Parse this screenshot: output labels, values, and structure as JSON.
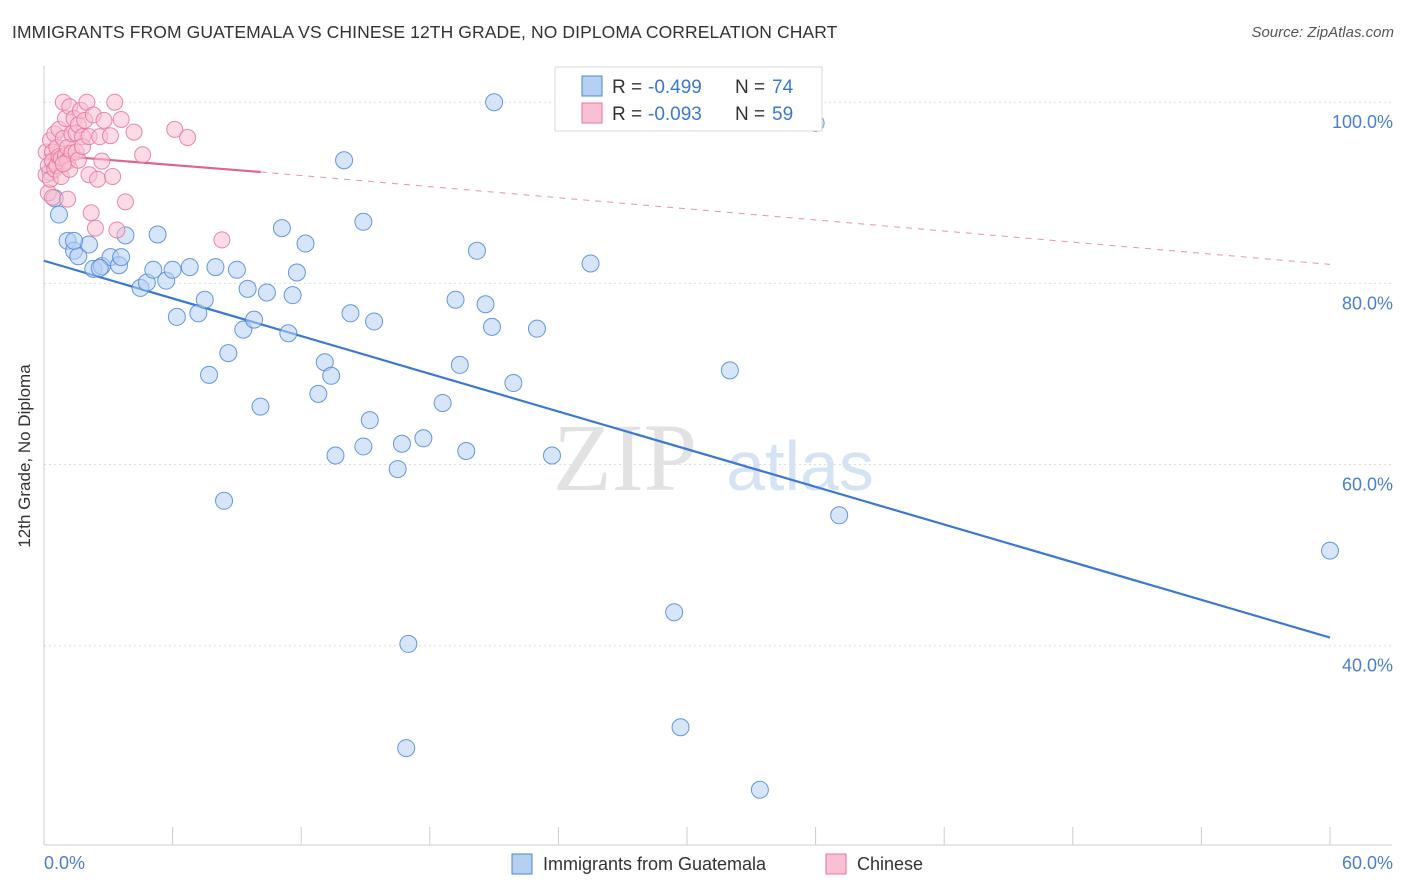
{
  "title": "IMMIGRANTS FROM GUATEMALA VS CHINESE 12TH GRADE, NO DIPLOMA CORRELATION CHART",
  "source": "Source: ZipAtlas.com",
  "watermark": {
    "zip": "ZIP",
    "atlas": "atlas"
  },
  "colors": {
    "blue": "#4a86d8",
    "blue_fill": "#b6d0f2",
    "blue_line": "#3b78d4",
    "pink": "#e8739a",
    "pink_fill": "#f8c0d2",
    "pink_line": "#e0628e",
    "axis_text": "#4a7ecf",
    "grid": "#dddddd"
  },
  "legend": {
    "rows": [
      {
        "r_label": "R =",
        "r_value": "-0.499",
        "n_label": "N =",
        "n_value": "74",
        "color": "blue"
      },
      {
        "r_label": "R =",
        "r_value": "-0.093",
        "n_label": "N =",
        "n_value": "59",
        "color": "pink"
      }
    ]
  },
  "bottom_legend": [
    {
      "label": "Immigrants from Guatemala",
      "color": "blue"
    },
    {
      "label": "Chinese",
      "color": "pink"
    }
  ],
  "chart_data": {
    "type": "scatter",
    "title": "IMMIGRANTS FROM GUATEMALA VS CHINESE 12TH GRADE, NO DIPLOMA CORRELATION CHART",
    "xlabel": "",
    "ylabel": "12th Grade, No Diploma",
    "xlim": [
      0,
      60
    ],
    "ylim": [
      18,
      104
    ],
    "x_tick_labels": [
      {
        "value": 0,
        "label": "0.0%"
      },
      {
        "value": 60,
        "label": "60.0%"
      }
    ],
    "x_minor_ticks": [
      0,
      6,
      12,
      18,
      24,
      30,
      36,
      42,
      48,
      54,
      60
    ],
    "y_ticks": [
      {
        "value": 100,
        "label": "100.0%"
      },
      {
        "value": 80,
        "label": "80.0%"
      },
      {
        "value": 60,
        "label": "60.0%"
      },
      {
        "value": 40,
        "label": "40.0%"
      }
    ],
    "series": [
      {
        "name": "Immigrants from Guatemala",
        "color": "blue",
        "points": [
          [
            0.3,
            92.3
          ],
          [
            0.5,
            89.4
          ],
          [
            0.7,
            87.6
          ],
          [
            1.1,
            84.7
          ],
          [
            1.4,
            83.6
          ],
          [
            1.6,
            83.0
          ],
          [
            2.1,
            84.3
          ],
          [
            2.3,
            81.6
          ],
          [
            2.7,
            81.9
          ],
          [
            3.1,
            82.9
          ],
          [
            3.5,
            82.0
          ],
          [
            3.6,
            82.9
          ],
          [
            3.8,
            85.3
          ],
          [
            4.5,
            79.5
          ],
          [
            4.8,
            80.1
          ],
          [
            5.1,
            81.5
          ],
          [
            5.3,
            85.4
          ],
          [
            5.7,
            80.3
          ],
          [
            6.0,
            81.5
          ],
          [
            6.2,
            76.3
          ],
          [
            6.8,
            81.8
          ],
          [
            7.2,
            76.7
          ],
          [
            7.5,
            78.2
          ],
          [
            7.7,
            69.9
          ],
          [
            8.0,
            81.8
          ],
          [
            8.4,
            56.0
          ],
          [
            8.6,
            72.3
          ],
          [
            9.0,
            81.5
          ],
          [
            9.3,
            74.9
          ],
          [
            9.5,
            79.4
          ],
          [
            9.8,
            76.0
          ],
          [
            10.1,
            66.4
          ],
          [
            10.4,
            79.0
          ],
          [
            11.1,
            86.1
          ],
          [
            11.4,
            74.5
          ],
          [
            11.6,
            78.7
          ],
          [
            11.8,
            81.2
          ],
          [
            12.2,
            84.4
          ],
          [
            12.8,
            67.8
          ],
          [
            13.1,
            71.3
          ],
          [
            13.4,
            69.8
          ],
          [
            13.6,
            61.0
          ],
          [
            14.0,
            93.6
          ],
          [
            14.3,
            76.7
          ],
          [
            14.9,
            62.0
          ],
          [
            14.9,
            86.8
          ],
          [
            15.2,
            64.9
          ],
          [
            15.4,
            75.8
          ],
          [
            16.5,
            59.5
          ],
          [
            16.7,
            62.3
          ],
          [
            16.9,
            28.7
          ],
          [
            17.0,
            40.2
          ],
          [
            17.7,
            62.9
          ],
          [
            18.6,
            66.8
          ],
          [
            19.2,
            78.2
          ],
          [
            19.4,
            71.0
          ],
          [
            19.7,
            61.5
          ],
          [
            20.2,
            83.6
          ],
          [
            20.6,
            77.7
          ],
          [
            20.9,
            75.2
          ],
          [
            21.0,
            100.0
          ],
          [
            21.9,
            69.0
          ],
          [
            23.0,
            75.0
          ],
          [
            23.7,
            61.0
          ],
          [
            25.5,
            82.2
          ],
          [
            29.4,
            43.7
          ],
          [
            29.7,
            31.0
          ],
          [
            32.0,
            70.4
          ],
          [
            33.4,
            24.1
          ],
          [
            36.0,
            97.7
          ],
          [
            37.1,
            54.4
          ],
          [
            60.0,
            50.5
          ],
          [
            1.4,
            84.7
          ],
          [
            2.6,
            81.7
          ]
        ]
      },
      {
        "name": "Chinese",
        "color": "pink",
        "points": [
          [
            0.1,
            92.0
          ],
          [
            0.1,
            94.5
          ],
          [
            0.2,
            90.0
          ],
          [
            0.2,
            93.0
          ],
          [
            0.3,
            95.8
          ],
          [
            0.3,
            91.5
          ],
          [
            0.4,
            94.5
          ],
          [
            0.4,
            93.5
          ],
          [
            0.4,
            89.5
          ],
          [
            0.5,
            96.5
          ],
          [
            0.5,
            92.6
          ],
          [
            0.6,
            95.0
          ],
          [
            0.6,
            93.0
          ],
          [
            0.7,
            94.0
          ],
          [
            0.7,
            97.0
          ],
          [
            0.8,
            91.8
          ],
          [
            0.8,
            93.8
          ],
          [
            0.9,
            100.0
          ],
          [
            0.9,
            96.0
          ],
          [
            1.0,
            98.2
          ],
          [
            1.0,
            94.1
          ],
          [
            1.1,
            95.0
          ],
          [
            1.1,
            93.5
          ],
          [
            1.1,
            89.3
          ],
          [
            1.2,
            99.5
          ],
          [
            1.2,
            92.6
          ],
          [
            1.3,
            96.5
          ],
          [
            1.3,
            94.4
          ],
          [
            1.4,
            98.2
          ],
          [
            1.5,
            96.6
          ],
          [
            1.5,
            94.5
          ],
          [
            1.6,
            97.5
          ],
          [
            1.6,
            93.6
          ],
          [
            1.7,
            99.1
          ],
          [
            1.8,
            96.2
          ],
          [
            1.8,
            95.1
          ],
          [
            1.9,
            98.0
          ],
          [
            2.0,
            100.0
          ],
          [
            2.1,
            96.2
          ],
          [
            2.1,
            92.0
          ],
          [
            2.2,
            87.8
          ],
          [
            2.3,
            98.6
          ],
          [
            2.4,
            86.1
          ],
          [
            2.5,
            91.5
          ],
          [
            2.6,
            96.2
          ],
          [
            2.7,
            93.5
          ],
          [
            2.8,
            98.0
          ],
          [
            3.1,
            96.3
          ],
          [
            3.2,
            91.8
          ],
          [
            3.3,
            100.0
          ],
          [
            3.4,
            85.9
          ],
          [
            3.6,
            98.1
          ],
          [
            3.8,
            89.0
          ],
          [
            4.2,
            96.7
          ],
          [
            4.6,
            94.2
          ],
          [
            6.1,
            97.0
          ],
          [
            6.7,
            96.1
          ],
          [
            8.3,
            84.8
          ],
          [
            0.9,
            93.2
          ]
        ]
      }
    ],
    "trend_lines": [
      {
        "series": "Immigrants from Guatemala",
        "x": [
          0,
          60
        ],
        "y": [
          82.5,
          40.9
        ],
        "style": "solid"
      },
      {
        "series": "Chinese",
        "x": [
          0,
          10.1
        ],
        "y": [
          94.2,
          92.3
        ],
        "style": "solid"
      },
      {
        "series": "Chinese",
        "x": [
          10.1,
          60
        ],
        "y": [
          92.3,
          82.1
        ],
        "style": "dashed"
      }
    ]
  }
}
